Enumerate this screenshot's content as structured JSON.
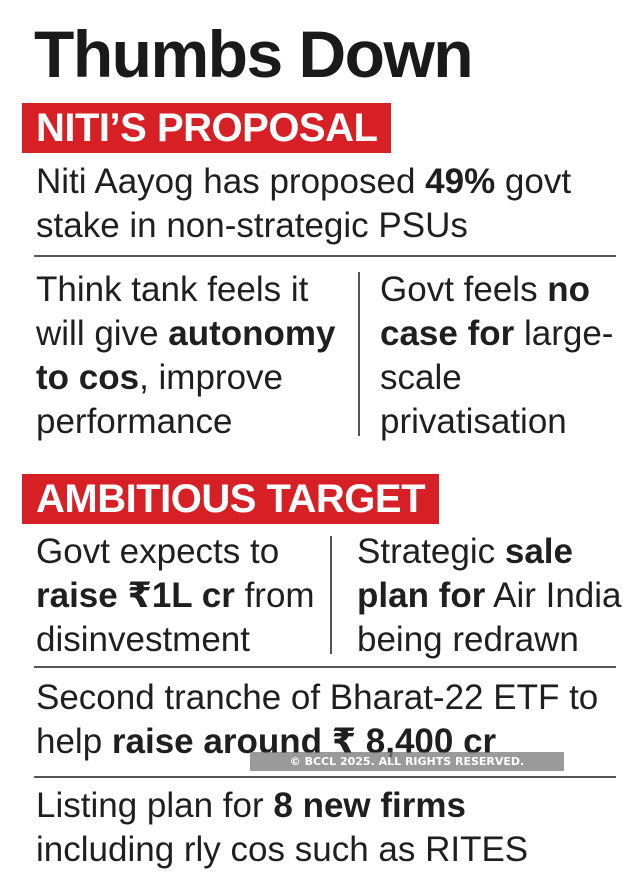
{
  "title": "Thumbs Down",
  "section1": {
    "banner": "NITI’S PROPOSAL",
    "intro": {
      "a": "Niti Aayog has proposed ",
      "b": "49%",
      "c": " govt",
      "d": "stake in non-strategic PSUs"
    },
    "left": {
      "l1": "Think tank feels it",
      "l2a": "will give ",
      "l2b": "autonomy",
      "l3a": "to cos",
      "l3b": ", improve",
      "l4": "performance"
    },
    "right": {
      "l1a": "Govt feels ",
      "l1b": "no",
      "l2a": "case for",
      "l2b": " large-",
      "l3": "scale",
      "l4": "privatisation"
    }
  },
  "section2": {
    "banner": "AMBITIOUS TARGET",
    "left": {
      "l1": "Govt expects to",
      "l2a": "raise ₹1L cr",
      "l2b": " from",
      "l3": "disinvestment"
    },
    "right": {
      "l1a": "Strategic ",
      "l1b": "sale",
      "l2a": "plan for",
      "l2b": " Air India",
      "l3": "being redrawn"
    },
    "etf": {
      "l1": "Second tranche of Bharat-22 ETF to",
      "l2a": "help ",
      "l2b": "raise around ₹ 8,400 cr"
    },
    "listing": {
      "l1a": "Listing plan for ",
      "l1b": "8 new firms",
      "l2": "including rly cos such as RITES"
    }
  },
  "watermark": "© BCCL 2025. ALL RIGHTS RESERVED."
}
